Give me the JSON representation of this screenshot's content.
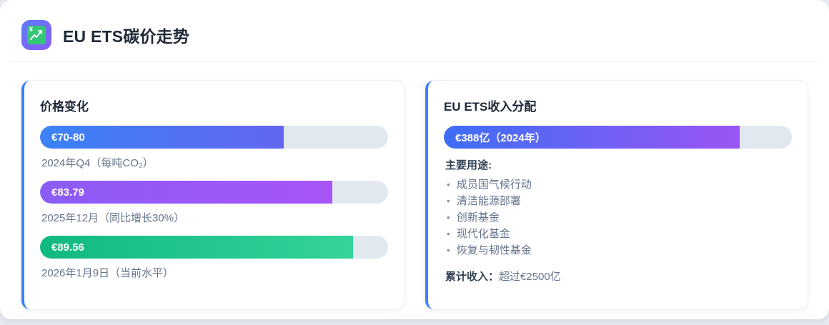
{
  "header": {
    "title": "EU ETS碳价走势",
    "icon": "chart-increasing-with-yen-icon",
    "icon_yen_glyph": "¥"
  },
  "price_card": {
    "title": "价格变化",
    "bars": [
      {
        "label": "€70-80",
        "caption": "2024年Q4（每吨CO₂）",
        "percent": 70,
        "gradient": [
          "#3b82f6",
          "#6366f1"
        ]
      },
      {
        "label": "€83.79",
        "caption": "2025年12月（同比增长30%）",
        "percent": 84,
        "gradient": [
          "#8b5cf6",
          "#a855f7"
        ]
      },
      {
        "label": "€89.56",
        "caption": "2026年1月9日（当前水平）",
        "percent": 90,
        "gradient": [
          "#10b981",
          "#34d399"
        ]
      }
    ]
  },
  "revenue_card": {
    "title": "EU ETS收入分配",
    "bar": {
      "label": "€388亿（2024年）",
      "percent": 85,
      "gradient": [
        "#3e6df5",
        "#9b55f6"
      ]
    },
    "uses_heading": "主要用途:",
    "uses": [
      "成员国气候行动",
      "清洁能源部署",
      "创新基金",
      "现代化基金",
      "恢复与韧性基金"
    ],
    "bullet_glyph": "•",
    "total_label": "累计收入：",
    "total_value": "超过€2500亿"
  },
  "colors": {
    "accent": "#3b82f6",
    "track": "#e2e8f0",
    "page_bg": "#e8ebf1",
    "icon_from": "#5b7cfa",
    "icon_to": "#8b5cf6",
    "icon_inner": "#34c776"
  }
}
